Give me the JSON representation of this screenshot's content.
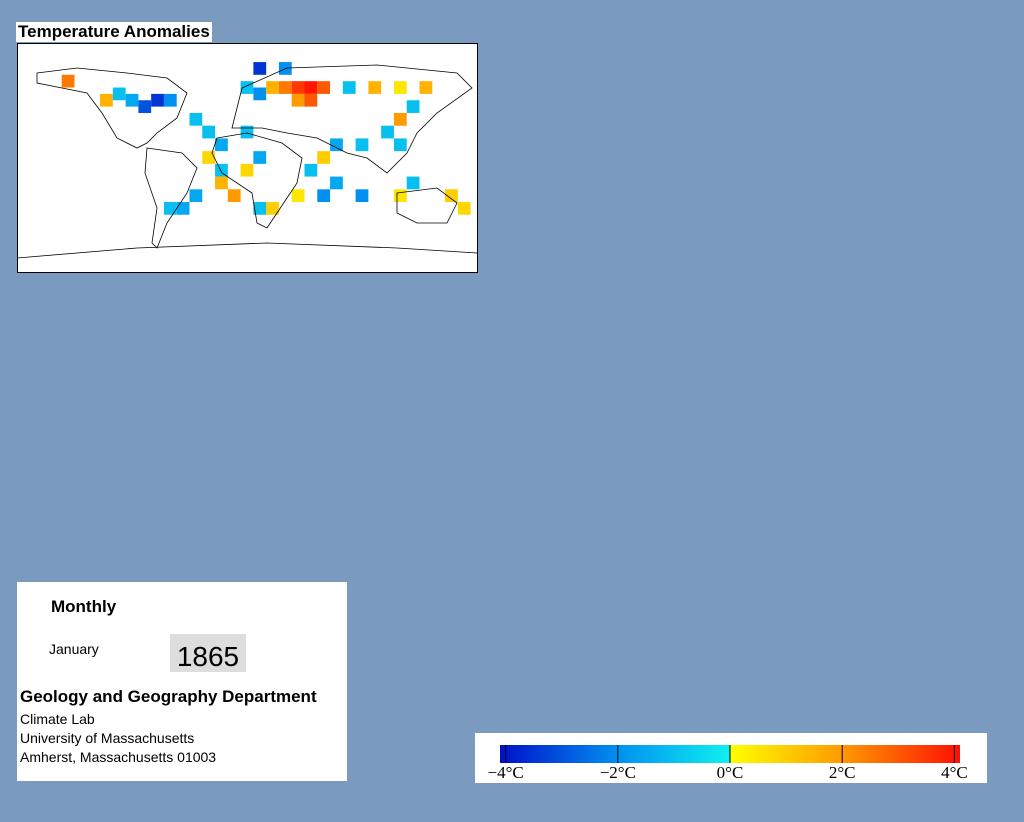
{
  "map": {
    "title": "Temperature Anomalies",
    "lon_range": [
      -180,
      180
    ],
    "lat_range": [
      90,
      -90
    ],
    "cell_size": 10,
    "cells": [
      {
        "lon": -140,
        "lat": 60,
        "value": 2.5
      },
      {
        "lon": -110,
        "lat": 45,
        "value": 1.5
      },
      {
        "lon": -100,
        "lat": 50,
        "value": -1
      },
      {
        "lon": -90,
        "lat": 45,
        "value": -1.5
      },
      {
        "lon": -80,
        "lat": 40,
        "value": -3
      },
      {
        "lon": -70,
        "lat": 45,
        "value": -3.5
      },
      {
        "lon": -60,
        "lat": 45,
        "value": -2
      },
      {
        "lon": -40,
        "lat": 30,
        "value": -1
      },
      {
        "lon": -30,
        "lat": 20,
        "value": -1
      },
      {
        "lon": -20,
        "lat": 10,
        "value": -1.5
      },
      {
        "lon": -30,
        "lat": 0,
        "value": 0.8
      },
      {
        "lon": -20,
        "lat": -10,
        "value": -1
      },
      {
        "lon": -20,
        "lat": -20,
        "value": 1.5
      },
      {
        "lon": -10,
        "lat": -30,
        "value": 2
      },
      {
        "lon": -40,
        "lat": -30,
        "value": -1.5
      },
      {
        "lon": -60,
        "lat": -40,
        "value": -1
      },
      {
        "lon": -50,
        "lat": -40,
        "value": -1.5
      },
      {
        "lon": 0,
        "lat": 55,
        "value": -1
      },
      {
        "lon": 10,
        "lat": 50,
        "value": -2
      },
      {
        "lon": 20,
        "lat": 55,
        "value": 1.5
      },
      {
        "lon": 30,
        "lat": 55,
        "value": 2.5
      },
      {
        "lon": 40,
        "lat": 55,
        "value": 3.5
      },
      {
        "lon": 50,
        "lat": 55,
        "value": 4
      },
      {
        "lon": 60,
        "lat": 55,
        "value": 3
      },
      {
        "lon": 50,
        "lat": 45,
        "value": 3
      },
      {
        "lon": 40,
        "lat": 45,
        "value": 2
      },
      {
        "lon": 30,
        "lat": 70,
        "value": -2
      },
      {
        "lon": 10,
        "lat": 70,
        "value": -3.5
      },
      {
        "lon": 0,
        "lat": 20,
        "value": -1
      },
      {
        "lon": 10,
        "lat": 0,
        "value": -1.5
      },
      {
        "lon": 0,
        "lat": -10,
        "value": 0.8
      },
      {
        "lon": 80,
        "lat": 55,
        "value": -1
      },
      {
        "lon": 100,
        "lat": 55,
        "value": 1.5
      },
      {
        "lon": 120,
        "lat": 55,
        "value": 0.5
      },
      {
        "lon": 140,
        "lat": 55,
        "value": 1.5
      },
      {
        "lon": 130,
        "lat": 40,
        "value": -1
      },
      {
        "lon": 120,
        "lat": 30,
        "value": 2
      },
      {
        "lon": 110,
        "lat": 20,
        "value": -1
      },
      {
        "lon": 120,
        "lat": 10,
        "value": -1
      },
      {
        "lon": 90,
        "lat": 10,
        "value": -1
      },
      {
        "lon": 70,
        "lat": 10,
        "value": -1.5
      },
      {
        "lon": 60,
        "lat": 0,
        "value": 1
      },
      {
        "lon": 50,
        "lat": -10,
        "value": -1
      },
      {
        "lon": 70,
        "lat": -20,
        "value": -1.5
      },
      {
        "lon": 60,
        "lat": -30,
        "value": -2
      },
      {
        "lon": 40,
        "lat": -30,
        "value": 0.5
      },
      {
        "lon": 20,
        "lat": -40,
        "value": 1
      },
      {
        "lon": 10,
        "lat": -40,
        "value": -1
      },
      {
        "lon": 90,
        "lat": -30,
        "value": -2
      },
      {
        "lon": 120,
        "lat": -30,
        "value": 0.5
      },
      {
        "lon": 130,
        "lat": -20,
        "value": -1
      },
      {
        "lon": 160,
        "lat": -30,
        "value": 1
      },
      {
        "lon": 170,
        "lat": -40,
        "value": 0.8
      }
    ]
  },
  "info": {
    "period": "Monthly",
    "month": "January",
    "year": "1865",
    "department": "Geology and Geography Department",
    "lines": [
      "Climate Lab",
      "University of Massachusetts",
      "Amherst, Massachusetts 01003"
    ]
  },
  "colorbar": {
    "range": [
      -4.1,
      4.1
    ],
    "stops": [
      [
        -4.1,
        "#0010c8"
      ],
      [
        -2,
        "#0090f0"
      ],
      [
        0,
        "#10f0f0"
      ],
      [
        0,
        "#ffff00"
      ],
      [
        2,
        "#ff9a00"
      ],
      [
        4.1,
        "#ff1000"
      ]
    ],
    "ticks": [
      {
        "value": -4,
        "label": "−4°C"
      },
      {
        "value": -2,
        "label": "−2°C"
      },
      {
        "value": 0,
        "label": "0°C"
      },
      {
        "value": 2,
        "label": "2°C"
      },
      {
        "value": 4,
        "label": "4°C"
      }
    ]
  }
}
